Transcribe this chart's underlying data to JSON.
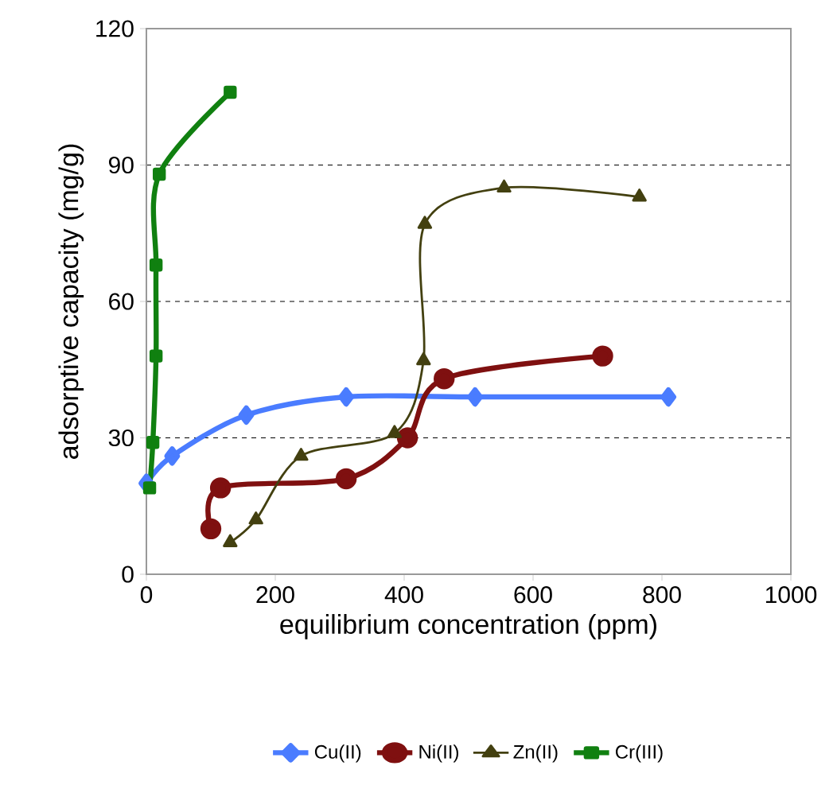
{
  "chart_data": {
    "type": "line",
    "xlabel": "equilibrium concentration (ppm)",
    "ylabel": "adsorptive capacity (mg/g)",
    "xlim": [
      0,
      1000
    ],
    "ylim": [
      0,
      120
    ],
    "xticks": [
      0,
      200,
      400,
      600,
      800,
      1000
    ],
    "yticks": [
      0,
      30,
      60,
      90,
      120
    ],
    "grid": "y",
    "legend": "bottom",
    "series": [
      {
        "name": "Cu(II)",
        "color": "#4a7cff",
        "marker": "diamond",
        "x": [
          0,
          40,
          155,
          310,
          510,
          810
        ],
        "values": [
          20,
          26,
          35,
          39,
          39,
          39
        ]
      },
      {
        "name": "Ni(II)",
        "color": "#7f1010",
        "marker": "circle",
        "x": [
          100,
          115,
          310,
          405,
          462,
          708
        ],
        "values": [
          10,
          19,
          21,
          30,
          43,
          48
        ]
      },
      {
        "name": "Zn(II)",
        "color": "#434010",
        "marker": "triangle",
        "x": [
          130,
          170,
          240,
          385,
          430,
          432,
          555,
          765
        ],
        "values": [
          7,
          12,
          26,
          31,
          47,
          77,
          85,
          83
        ]
      },
      {
        "name": "Cr(III)",
        "color": "#108010",
        "marker": "square",
        "x": [
          5,
          10,
          15,
          15,
          20,
          130
        ],
        "values": [
          19,
          29,
          48,
          68,
          88,
          106
        ]
      }
    ]
  }
}
